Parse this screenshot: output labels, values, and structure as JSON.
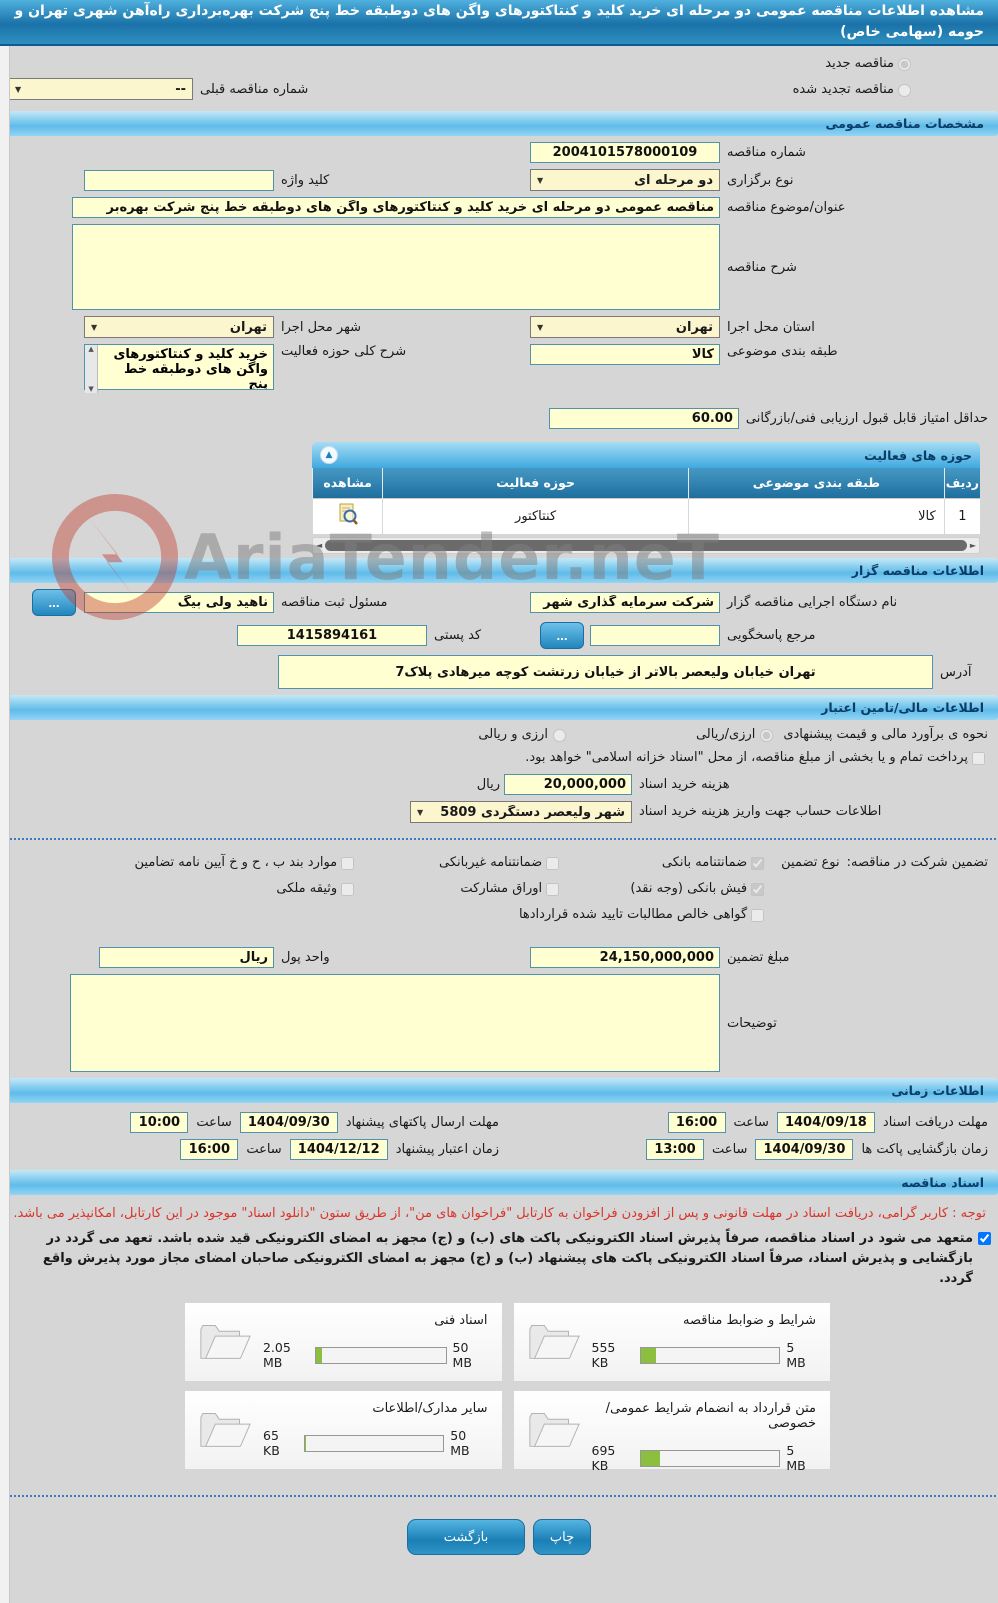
{
  "page_title": "مشاهده اطلاعات مناقصه عمومی دو مرحله ای خرید کلید و کنتاکتورهای واگن های دوطبقه خط پنج شرکت بهره‌برداری راه‌آهن شهری تهران و حومه (سهامی خاص)",
  "icons": {
    "arrow_down": "▼",
    "collapse": "▲",
    "more": "...",
    "scroll_left": "◄",
    "scroll_right": "►",
    "scroll_up": "▲",
    "scroll_down": "▼"
  },
  "colors": {
    "header_blue": "#1a72a8",
    "section_bar_blue": "#5fbbe9",
    "input_yellow": "#ffffd2",
    "notice_red": "#d9352a",
    "progress_green": "#8cbf3f",
    "table_header_blue": "#1f6f9e"
  },
  "top": {
    "new_tender_label": "مناقصه جدید",
    "new_tender_checked": true,
    "renewed_tender_label": "مناقصه تجدید شده",
    "renewed_tender_checked": false,
    "prev_number_label": "شماره مناقصه قبلی",
    "prev_number_value": "--"
  },
  "general": {
    "section_title": "مشخصات مناقصه عمومی",
    "tender_number_label": "شماره مناقصه",
    "tender_number": "2004101578000109",
    "holding_type_label": "نوع برگزاری",
    "holding_type": "دو مرحله ای",
    "keyword_label": "کلید واژه",
    "keyword_value": "",
    "subject_label": "عنوان/موضوع مناقصه",
    "subject_value": "مناقصه عمومی دو مرحله ای خرید کلید و کنتاکتورهای واگن های دوطبقه خط پنج شرکت بهره‌بر",
    "description_label": "شرح مناقصه",
    "description_value": "",
    "province_label": "استان محل اجرا",
    "province": "تهران",
    "city_label": "شهر محل اجرا",
    "city": "تهران",
    "category_label": "طبقه بندی موضوعی",
    "category": "کالا",
    "activity_desc_label": "شرح کلی حوزه فعالیت",
    "activity_desc": "خرید کلید و کنتاکتورهای واگن های دوطبقه خط پنج",
    "min_score_label": "حداقل امتیاز قابل قبول ارزیابی فنی/بازرگانی",
    "min_score": "60.00"
  },
  "activity_table": {
    "title": "حوزه های فعالیت",
    "columns": {
      "row_no": "ردیف",
      "category": "طبقه بندی موضوعی",
      "activity": "حوزه فعالیت",
      "view": "مشاهده"
    },
    "rows": [
      {
        "row_no": "1",
        "category": "کالا",
        "activity": "کنتاکتور"
      }
    ]
  },
  "organizer": {
    "section_title": "اطلاعات مناقصه گزار",
    "agency_label": "نام دستگاه اجرایی مناقصه گزار",
    "agency": "شرکت سرمایه گذاری شهر",
    "registrar_label": "مسئول ثبت مناقصه",
    "registrar": "ناهید ولی بیگ",
    "contact_label": "مرجع پاسخگویی",
    "contact_value": "",
    "postal_code_label": "کد پستی",
    "postal_code": "1415894161",
    "address_label": "آدرس",
    "address": "تهران خیابان ولیعصر بالاتر از خیابان زرتشت کوچه میرهادی پلاک7"
  },
  "financial": {
    "section_title": "اطلاعات مالی/تامین اعتبار",
    "estimate_label": "نحوه ی برآورد مالی و قیمت پیشنهادی",
    "estimate_options": [
      {
        "label": "ارزی/ریالی",
        "checked": true
      },
      {
        "label": "ارزی و ریالی",
        "checked": false
      }
    ],
    "treasury_note": "پرداخت تمام و یا بخشی از مبلغ مناقصه، از محل \"اسناد خزانه اسلامی\" خواهد بود.",
    "treasury_checked": false,
    "doc_fee_label": "هزینه خرید اسناد",
    "doc_fee": "20,000,000",
    "doc_fee_unit": "ریال",
    "account_label": "اطلاعات حساب جهت واریز هزینه خرید اسناد",
    "account": "شهر ولیعصر دستگردی 5809",
    "guarantee_label": "تضمین شرکت در مناقصه:",
    "guarantee_type_label": "نوع تضمین",
    "guarantee_options": [
      {
        "label": "ضمانتنامه بانکی",
        "checked": true
      },
      {
        "label": "ضمانتنامه غیربانکی",
        "checked": false
      },
      {
        "label": "موارد بند ب ، ح و خ آیین نامه تضامین",
        "checked": false
      },
      {
        "label": "فیش بانکی (وجه نقد)",
        "checked": true
      },
      {
        "label": "اوراق مشارکت",
        "checked": false
      },
      {
        "label": "وثیقه ملکی",
        "checked": false
      },
      {
        "label": "گواهی خالص مطالبات تایید شده قراردادها",
        "checked": false
      }
    ],
    "guarantee_amount_label": "مبلغ تضمین",
    "guarantee_amount": "24,150,000,000",
    "currency_label": "واحد پول",
    "currency": "ریال",
    "notes_label": "توضیحات",
    "notes_value": ""
  },
  "schedule": {
    "section_title": "اطلاعات زمانی",
    "time_label": "ساعت",
    "items": [
      {
        "label": "مهلت دریافت اسناد",
        "date": "1404/09/18",
        "time": "16:00"
      },
      {
        "label": "مهلت ارسال پاکتهای پیشنهاد",
        "date": "1404/09/30",
        "time": "10:00"
      },
      {
        "label": "زمان بازگشایی پاکت ها",
        "date": "1404/09/30",
        "time": "13:00"
      },
      {
        "label": "زمان اعتبار پیشنهاد",
        "date": "1404/12/12",
        "time": "16:00"
      }
    ]
  },
  "documents": {
    "section_title": "اسناد مناقصه",
    "notice": "توجه : کاربر گرامی، دریافت اسناد در مهلت قانونی و پس از افزودن فراخوان به کارتابل \"فراخوان های من\"، از طریق ستون \"دانلود اسناد\" موجود در این کارتابل، امکانپذیر می باشد.",
    "commitment_checked": true,
    "commitment": "متعهد می شود در اسناد مناقصه، صرفاً پذیرش اسناد الکترونیکی پاکت های (ب) و (ج) مجهز به امضای الکترونیکی قید شده باشد. تعهد می گردد در بازگشایی و پذیرش اسناد، صرفاً اسناد الکترونیکی پاکت های پیشنهاد (ب) و (ج) مجهز به امضای الکترونیکی صاحبان امضای مجاز مورد پذیرش واقع گردد.",
    "files": [
      {
        "label": "شرایط و ضوابط مناقصه",
        "size": "555 KB",
        "max": "5 MB",
        "pct": 11
      },
      {
        "label": "اسناد فنی",
        "size": "2.05 MB",
        "max": "50 MB",
        "pct": 5
      },
      {
        "label": "متن قرارداد به انضمام شرایط عمومی/خصوصی",
        "size": "695 KB",
        "max": "5 MB",
        "pct": 14
      },
      {
        "label": "سایر مدارک/اطلاعات",
        "size": "65 KB",
        "max": "50 MB",
        "pct": 1
      }
    ]
  },
  "footer": {
    "print_button": "چاپ",
    "back_button": "بازگشت"
  },
  "watermark": "AriaTender.neT"
}
